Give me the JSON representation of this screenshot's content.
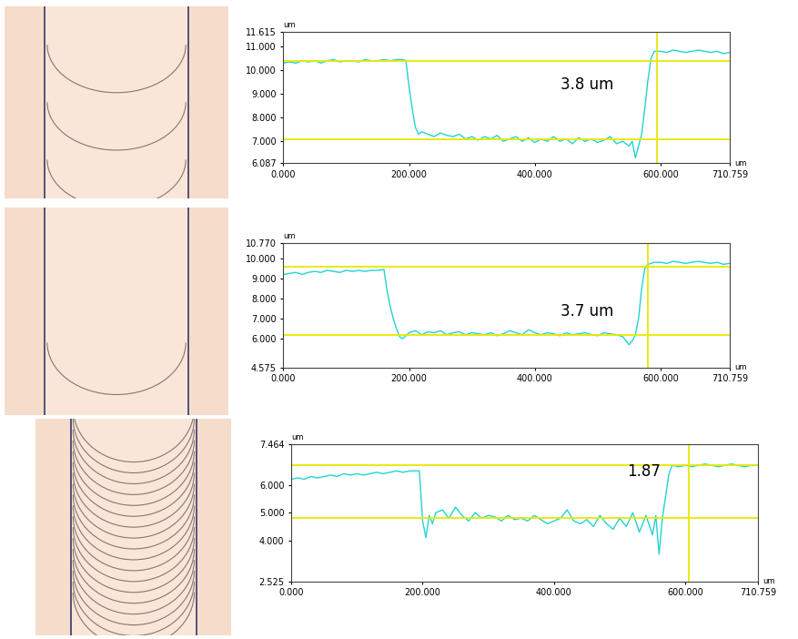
{
  "chart_data": [
    {
      "type": "line",
      "x_unit": "um",
      "y_unit": "um",
      "annotation": "3.8 um",
      "reference_y": [
        10.4,
        7.1
      ],
      "reference_x": 595,
      "xlim": [
        0,
        710.759
      ],
      "ylim": [
        6.087,
        11.615
      ],
      "xticks": [
        {
          "value": 0,
          "label": "0.000"
        },
        {
          "value": 200,
          "label": "200.000"
        },
        {
          "value": 400,
          "label": "400.000"
        },
        {
          "value": 600,
          "label": "600.000"
        },
        710.759
      ],
      "yticks": [
        6.087,
        {
          "value": 7,
          "label": "7.000"
        },
        {
          "value": 8,
          "label": "8.000"
        },
        {
          "value": 9,
          "label": "9.000"
        },
        {
          "value": 10,
          "label": "10.000"
        },
        {
          "value": 11,
          "label": "11.000"
        },
        11.615
      ],
      "series": [
        {
          "color": "#22d3d3",
          "x": [
            0,
            10,
            20,
            30,
            40,
            50,
            60,
            70,
            80,
            90,
            100,
            110,
            120,
            130,
            140,
            150,
            160,
            170,
            180,
            190,
            195,
            200,
            205,
            210,
            215,
            220,
            230,
            240,
            250,
            260,
            270,
            280,
            290,
            300,
            310,
            320,
            330,
            340,
            350,
            360,
            370,
            380,
            390,
            400,
            410,
            420,
            430,
            440,
            450,
            460,
            470,
            480,
            490,
            500,
            510,
            520,
            530,
            540,
            550,
            555,
            560,
            565,
            570,
            575,
            580,
            585,
            590,
            600,
            610,
            620,
            630,
            640,
            650,
            660,
            670,
            680,
            690,
            700,
            710
          ],
          "values": [
            10.3,
            10.35,
            10.3,
            10.4,
            10.35,
            10.4,
            10.3,
            10.4,
            10.45,
            10.35,
            10.4,
            10.4,
            10.35,
            10.45,
            10.4,
            10.4,
            10.45,
            10.4,
            10.45,
            10.45,
            10.4,
            9.3,
            8.4,
            7.6,
            7.3,
            7.4,
            7.3,
            7.2,
            7.35,
            7.25,
            7.2,
            7.3,
            7.1,
            7.2,
            7.05,
            7.2,
            7.1,
            7.25,
            7.0,
            7.1,
            7.2,
            7.0,
            7.15,
            6.95,
            7.1,
            7.0,
            7.2,
            7.0,
            7.1,
            6.9,
            7.15,
            7.0,
            7.1,
            6.95,
            7.05,
            7.2,
            6.9,
            7.0,
            6.8,
            7.0,
            6.3,
            6.8,
            7.3,
            8.4,
            9.6,
            10.5,
            10.8,
            10.8,
            10.75,
            10.85,
            10.8,
            10.75,
            10.8,
            10.85,
            10.8,
            10.75,
            10.8,
            10.7,
            10.75
          ]
        }
      ]
    },
    {
      "type": "line",
      "x_unit": "um",
      "y_unit": "um",
      "annotation": "3.7 um",
      "reference_y": [
        9.6,
        6.2
      ],
      "reference_x": 580,
      "xlim": [
        0,
        710.759
      ],
      "ylim": [
        4.575,
        10.77
      ],
      "xticks": [
        {
          "value": 0,
          "label": "0.000"
        },
        {
          "value": 200,
          "label": "200.000"
        },
        {
          "value": 400,
          "label": "400.000"
        },
        {
          "value": 600,
          "label": "600.000"
        },
        710.759
      ],
      "yticks": [
        4.575,
        {
          "value": 6,
          "label": "6.000"
        },
        {
          "value": 7,
          "label": "7.000"
        },
        {
          "value": 8,
          "label": "8.000"
        },
        {
          "value": 9,
          "label": "9.000"
        },
        {
          "value": 10,
          "label": "10.000"
        },
        {
          "value": 10.77,
          "label": "10.770"
        }
      ],
      "series": [
        {
          "color": "#22d3d3",
          "x": [
            0,
            10,
            20,
            30,
            40,
            50,
            60,
            70,
            80,
            90,
            100,
            110,
            120,
            130,
            140,
            150,
            160,
            165,
            170,
            175,
            180,
            185,
            190,
            200,
            210,
            220,
            230,
            240,
            250,
            260,
            270,
            280,
            290,
            300,
            310,
            320,
            330,
            340,
            350,
            360,
            370,
            380,
            390,
            400,
            410,
            420,
            430,
            440,
            450,
            460,
            470,
            480,
            490,
            500,
            510,
            520,
            530,
            540,
            550,
            555,
            560,
            565,
            570,
            575,
            580,
            590,
            600,
            610,
            620,
            630,
            640,
            650,
            660,
            670,
            680,
            690,
            700,
            710
          ],
          "values": [
            9.2,
            9.25,
            9.3,
            9.2,
            9.3,
            9.35,
            9.3,
            9.4,
            9.35,
            9.3,
            9.4,
            9.35,
            9.4,
            9.35,
            9.4,
            9.4,
            9.45,
            8.4,
            7.6,
            7.0,
            6.5,
            6.1,
            6.0,
            6.3,
            6.4,
            6.2,
            6.35,
            6.3,
            6.4,
            6.2,
            6.3,
            6.35,
            6.2,
            6.3,
            6.25,
            6.2,
            6.3,
            6.15,
            6.25,
            6.4,
            6.3,
            6.2,
            6.45,
            6.3,
            6.2,
            6.3,
            6.25,
            6.15,
            6.3,
            6.2,
            6.25,
            6.3,
            6.2,
            6.15,
            6.3,
            6.25,
            6.2,
            6.1,
            5.7,
            5.9,
            6.2,
            7.0,
            8.5,
            9.5,
            9.7,
            9.8,
            9.8,
            9.75,
            9.85,
            9.8,
            9.75,
            9.8,
            9.85,
            9.8,
            9.75,
            9.8,
            9.7,
            9.75
          ]
        }
      ]
    },
    {
      "type": "line",
      "x_unit": "um",
      "y_unit": "um",
      "annotation": "1.87",
      "reference_y": [
        6.7,
        4.8
      ],
      "reference_x": 605,
      "xlim": [
        0,
        710.759
      ],
      "ylim": [
        2.525,
        7.464
      ],
      "xticks": [
        {
          "value": 0,
          "label": "0.000"
        },
        {
          "value": 200,
          "label": "200.000"
        },
        {
          "value": 400,
          "label": "400.000"
        },
        {
          "value": 600,
          "label": "600.000"
        },
        710.759
      ],
      "yticks": [
        2.525,
        {
          "value": 4,
          "label": "4.000"
        },
        {
          "value": 5,
          "label": "5.000"
        },
        {
          "value": 6,
          "label": "6.000"
        },
        7.464
      ],
      "series": [
        {
          "color": "#22d3d3",
          "x": [
            0,
            10,
            20,
            30,
            40,
            50,
            60,
            70,
            80,
            90,
            100,
            110,
            120,
            130,
            140,
            150,
            160,
            170,
            180,
            190,
            195,
            200,
            205,
            210,
            215,
            220,
            230,
            240,
            250,
            260,
            270,
            280,
            290,
            300,
            310,
            320,
            330,
            340,
            350,
            360,
            370,
            380,
            390,
            400,
            410,
            420,
            430,
            440,
            450,
            460,
            470,
            480,
            490,
            500,
            510,
            520,
            530,
            540,
            550,
            555,
            560,
            565,
            570,
            575,
            580,
            590,
            600,
            610,
            620,
            630,
            640,
            650,
            660,
            670,
            680,
            690,
            700,
            710
          ],
          "values": [
            6.2,
            6.25,
            6.2,
            6.3,
            6.25,
            6.3,
            6.35,
            6.3,
            6.4,
            6.35,
            6.4,
            6.35,
            6.4,
            6.45,
            6.4,
            6.45,
            6.5,
            6.45,
            6.5,
            6.5,
            6.5,
            4.7,
            4.1,
            4.9,
            4.6,
            5.0,
            5.1,
            4.8,
            5.2,
            4.9,
            4.7,
            5.0,
            4.8,
            4.9,
            4.85,
            4.7,
            4.9,
            4.75,
            4.8,
            4.7,
            4.9,
            4.75,
            4.6,
            4.7,
            4.8,
            5.1,
            4.7,
            4.6,
            4.75,
            4.5,
            4.9,
            4.6,
            4.4,
            4.8,
            4.5,
            5.0,
            4.3,
            4.9,
            4.2,
            4.9,
            3.5,
            4.8,
            5.6,
            6.4,
            6.7,
            6.65,
            6.7,
            6.65,
            6.7,
            6.75,
            6.7,
            6.65,
            6.7,
            6.75,
            6.7,
            6.65,
            6.7,
            6.7
          ]
        }
      ]
    }
  ]
}
